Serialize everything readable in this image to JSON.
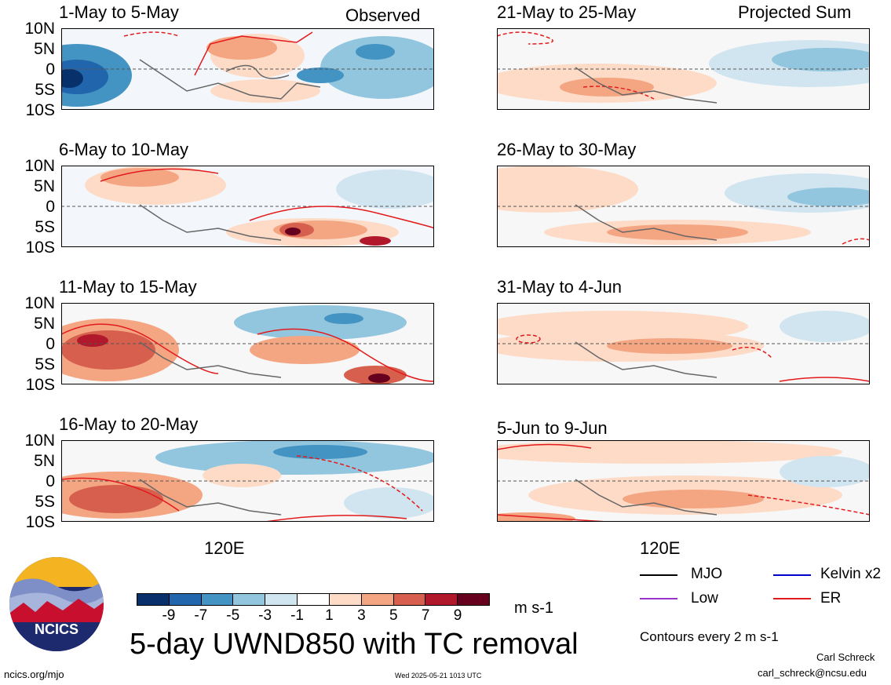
{
  "header": {
    "observed_label": "Observed",
    "projected_label": "Projected Sum"
  },
  "chart_data": {
    "type": "heatmap",
    "title": "5-day UWND850 with TC removal",
    "units": "m s-1",
    "lat_ticks": [
      "10N",
      "5N",
      "0",
      "5S",
      "10S"
    ],
    "x_tick": "120E",
    "panels": [
      {
        "title": "1-May to 5-May",
        "group": "Observed"
      },
      {
        "title": "6-May to 10-May",
        "group": "Observed"
      },
      {
        "title": "11-May to 15-May",
        "group": "Observed"
      },
      {
        "title": "16-May to 20-May",
        "group": "Observed"
      },
      {
        "title": "21-May to 25-May",
        "group": "Projected Sum"
      },
      {
        "title": "26-May to 30-May",
        "group": "Projected Sum"
      },
      {
        "title": "31-May to 4-Jun",
        "group": "Projected Sum"
      },
      {
        "title": "5-Jun to 9-Jun",
        "group": "Projected Sum"
      }
    ],
    "colorbar": {
      "ticks": [
        "-9",
        "-7",
        "-5",
        "-3",
        "-1",
        "1",
        "3",
        "5",
        "7",
        "9"
      ],
      "colors": [
        "#08306b",
        "#2166ac",
        "#4393c3",
        "#92c5de",
        "#d1e5f0",
        "#ffffff",
        "#fddbc7",
        "#f4a582",
        "#d6604d",
        "#b2182b",
        "#67001f"
      ]
    },
    "contour_note": "Contours every 2 m s-1",
    "legend": [
      {
        "name": "MJO",
        "color": "#000000"
      },
      {
        "name": "Kelvin x2",
        "color": "#0000cc"
      },
      {
        "name": "Low",
        "color": "#9933cc"
      },
      {
        "name": "ER",
        "color": "#e31a1c"
      }
    ]
  },
  "footer": {
    "logo_text": "NCICS",
    "url": "ncics.org/mjo",
    "timestamp": "Wed 2025-05-21 1013 UTC",
    "author": "Carl Schreck",
    "email": "carl_schreck@ncsu.edu"
  }
}
